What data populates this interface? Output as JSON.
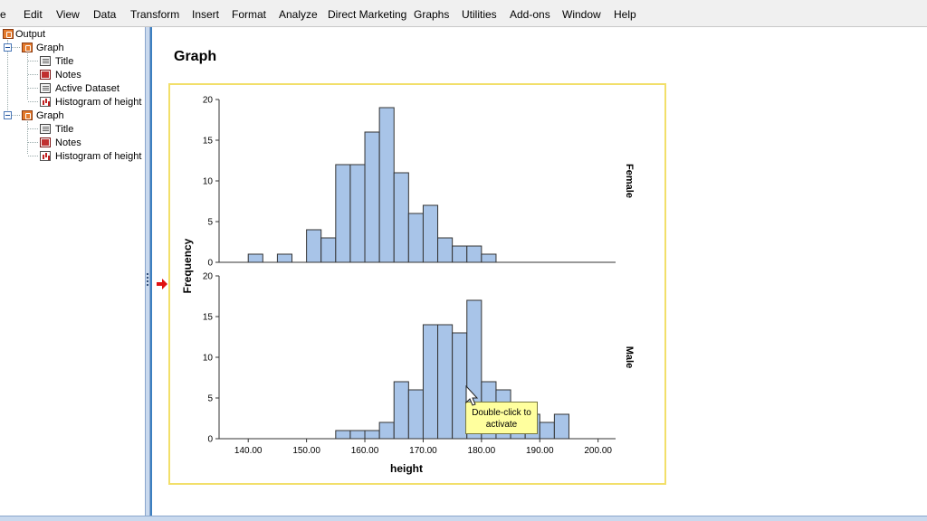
{
  "menu": [
    "e",
    "Edit",
    "View",
    "Data",
    "Transform",
    "Insert",
    "Format",
    "Analyze",
    "Direct Marketing",
    "Graphs",
    "Utilities",
    "Add-ons",
    "Window",
    "Help"
  ],
  "tree": {
    "root": "Output",
    "groups": [
      {
        "label": "Graph",
        "children": [
          "Title",
          "Notes",
          "Active Dataset",
          "Histogram of height"
        ]
      },
      {
        "label": "Graph",
        "children": [
          "Title",
          "Notes",
          "Histogram of height"
        ]
      }
    ]
  },
  "main": {
    "title": "Graph",
    "tooltip_line1": "Double-click to",
    "tooltip_line2": "activate"
  },
  "chart_data": {
    "type": "bar",
    "xlabel": "height",
    "ylabel": "Frequency",
    "xlim": [
      135,
      203
    ],
    "ylim": [
      0,
      20
    ],
    "x_ticks": [
      "140.00",
      "150.00",
      "160.00",
      "170.00",
      "180.00",
      "190.00",
      "200.00"
    ],
    "y_ticks": [
      "0",
      "5",
      "10",
      "15",
      "20"
    ],
    "bin_width": 2.5,
    "bar_color": "#a8c4e8",
    "series": [
      {
        "name": "Female",
        "bin_starts": [
          140,
          145,
          150,
          152.5,
          155,
          157.5,
          160,
          162.5,
          165,
          167.5,
          170,
          172.5,
          175,
          177.5,
          180
        ],
        "values": [
          1,
          1,
          4,
          3,
          12,
          12,
          16,
          19,
          11,
          6,
          7,
          3,
          2,
          2,
          1
        ]
      },
      {
        "name": "Male",
        "bin_starts": [
          155,
          157.5,
          160,
          162.5,
          165,
          167.5,
          170,
          172.5,
          175,
          177.5,
          180,
          182.5,
          185,
          187.5,
          190,
          192.5
        ],
        "values": [
          1,
          1,
          1,
          2,
          7,
          6,
          14,
          14,
          13,
          17,
          7,
          6,
          3,
          3,
          2,
          3
        ]
      }
    ]
  }
}
